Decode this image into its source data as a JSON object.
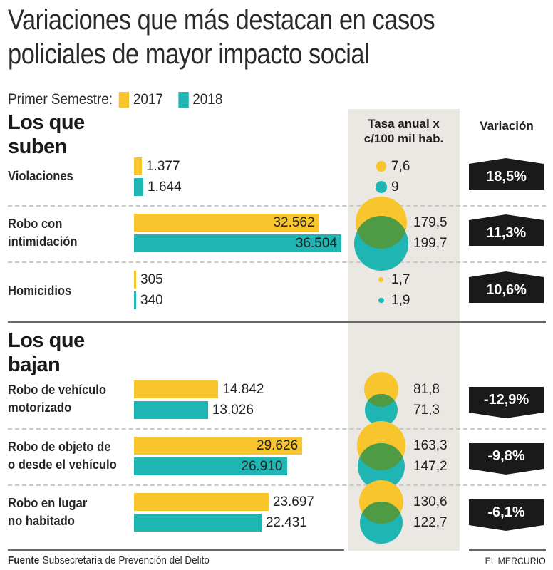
{
  "title": {
    "line1": "Variaciones que más destacan en casos",
    "line2": "policiales de mayor impacto social"
  },
  "legend": {
    "prefix": "Primer Semestre:",
    "items": [
      {
        "label": "2017",
        "color": "#f8c62c"
      },
      {
        "label": "2018",
        "color": "#1fb5b3"
      }
    ]
  },
  "column_headers": {
    "rate_line1": "Tasa anual x",
    "rate_line2": "c/100 mil hab.",
    "variation": "Variación"
  },
  "sections": {
    "up": {
      "line1": "Los que",
      "line2": "suben"
    },
    "down": {
      "line1": "Los que",
      "line2": "bajan"
    }
  },
  "colors": {
    "y2017": "#f8c62c",
    "y2018": "#1fb5b3",
    "overlap": "#4f9a44",
    "badge": "#1a1a1a",
    "gray_column": "#ebe8e3"
  },
  "chart_data": {
    "type": "bar",
    "title": "Variaciones que más destacan en casos policiales de mayor impacto social",
    "subtitle": "Primer Semestre",
    "xlabel": "",
    "ylabel": "",
    "series_names": [
      "2017",
      "2018"
    ],
    "categories": [
      {
        "group": "Los que suben",
        "label_lines": [
          "Violaciones"
        ],
        "cases_2017": 1377,
        "cases_2017_label": "1.377",
        "cases_2018": 1644,
        "cases_2018_label": "1.644",
        "rate_2017": 7.6,
        "rate_2017_label": "7,6",
        "rate_2018": 9,
        "rate_2018_label": "9",
        "variation_pct": 18.5,
        "variation_label": "18,5%",
        "direction": "up"
      },
      {
        "group": "Los que suben",
        "label_lines": [
          "Robo con",
          "intimidación"
        ],
        "cases_2017": 32562,
        "cases_2017_label": "32.562",
        "cases_2018": 36504,
        "cases_2018_label": "36.504",
        "rate_2017": 179.5,
        "rate_2017_label": "179,5",
        "rate_2018": 199.7,
        "rate_2018_label": "199,7",
        "variation_pct": 11.3,
        "variation_label": "11,3%",
        "direction": "up"
      },
      {
        "group": "Los que suben",
        "label_lines": [
          "Homicidios"
        ],
        "cases_2017": 305,
        "cases_2017_label": "305",
        "cases_2018": 340,
        "cases_2018_label": "340",
        "rate_2017": 1.7,
        "rate_2017_label": "1,7",
        "rate_2018": 1.9,
        "rate_2018_label": "1,9",
        "variation_pct": 10.6,
        "variation_label": "10,6%",
        "direction": "up"
      },
      {
        "group": "Los que bajan",
        "label_lines": [
          "Robo de vehículo",
          "motorizado"
        ],
        "cases_2017": 14842,
        "cases_2017_label": "14.842",
        "cases_2018": 13026,
        "cases_2018_label": "13.026",
        "rate_2017": 81.8,
        "rate_2017_label": "81,8",
        "rate_2018": 71.3,
        "rate_2018_label": "71,3",
        "variation_pct": -12.9,
        "variation_label": "-12,9%",
        "direction": "down"
      },
      {
        "group": "Los que bajan",
        "label_lines": [
          "Robo de objeto de",
          "o desde el vehículo"
        ],
        "cases_2017": 29626,
        "cases_2017_label": "29.626",
        "cases_2018": 26910,
        "cases_2018_label": "26.910",
        "rate_2017": 163.3,
        "rate_2017_label": "163,3",
        "rate_2018": 147.2,
        "rate_2018_label": "147,2",
        "variation_pct": -9.8,
        "variation_label": "-9,8%",
        "direction": "down"
      },
      {
        "group": "Los que bajan",
        "label_lines": [
          "Robo en lugar",
          "no habitado"
        ],
        "cases_2017": 23697,
        "cases_2017_label": "23.697",
        "cases_2018": 22431,
        "cases_2018_label": "22.431",
        "rate_2017": 130.6,
        "rate_2017_label": "130,6",
        "rate_2018": 122.7,
        "rate_2018_label": "122,7",
        "variation_pct": -6.1,
        "variation_label": "-6,1%",
        "direction": "down"
      }
    ],
    "xlim": [
      0,
      36504
    ],
    "grid": false,
    "legend_position": "top-left"
  },
  "footer": {
    "source_label": "Fuente",
    "source_text": "Subsecretaría de Prevención del Delito",
    "brand": "EL MERCURIO"
  }
}
